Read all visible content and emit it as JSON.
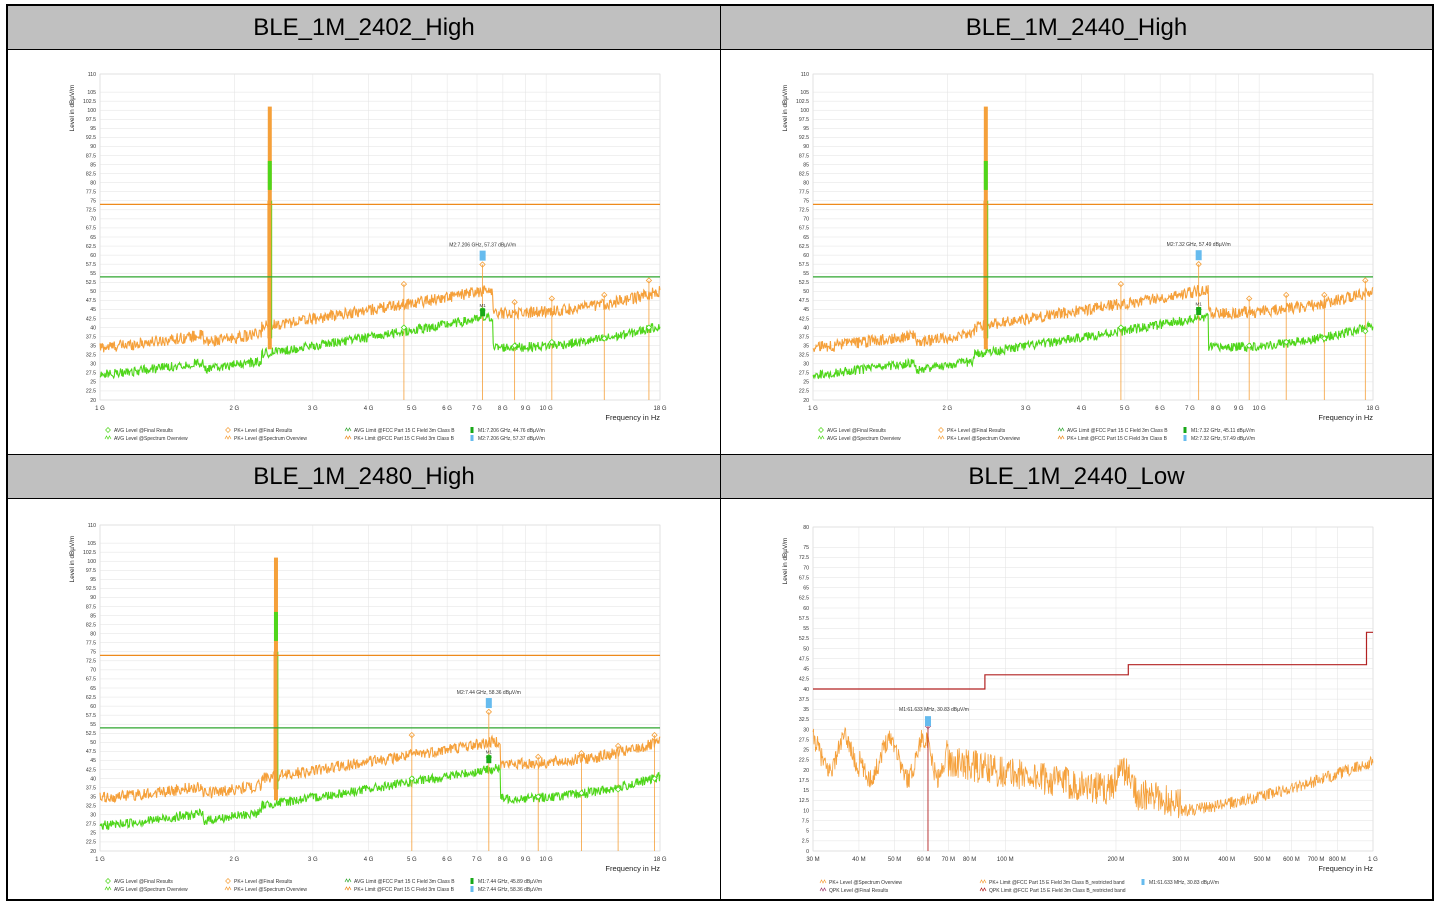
{
  "colors": {
    "avg": "#4fd61a",
    "pk": "#f5a03a",
    "avg_limit": "#2fa52f",
    "pk_limit": "#ee8a1c",
    "red_limit": "#b22222",
    "marker": "#66bbee",
    "grid": "#e2e2e2"
  },
  "chart_data": [
    {
      "type": "line",
      "title": "BLE_1M_2402_High",
      "ylabel": "Level in dBµV/m",
      "xlabel": "Frequency in Hz",
      "ylim": [
        20,
        110
      ],
      "xscale": "log",
      "xlim_hz": [
        1000000000,
        18000000000
      ],
      "y_ticks": [
        "110",
        "105",
        "102.5",
        "100",
        "97.5",
        "95",
        "92.5",
        "90",
        "87.5",
        "85",
        "82.5",
        "80",
        "77.5",
        "75",
        "72.5",
        "70",
        "67.5",
        "65",
        "62.5",
        "60",
        "57.5",
        "55",
        "52.5",
        "50",
        "47.5",
        "45",
        "42.5",
        "40",
        "37.5",
        "35",
        "32.5",
        "30",
        "27.5",
        "25",
        "22.5",
        "20"
      ],
      "x_ticks": [
        {
          "v": 1,
          "l": "1 G"
        },
        {
          "v": 2,
          "l": "2 G"
        },
        {
          "v": 3,
          "l": "3 G"
        },
        {
          "v": 4,
          "l": "4 G"
        },
        {
          "v": 5,
          "l": "5 G"
        },
        {
          "v": 6,
          "l": "6 G"
        },
        {
          "v": 7,
          "l": "7 G"
        },
        {
          "v": 8,
          "l": "8 G"
        },
        {
          "v": 9,
          "l": "9 G"
        },
        {
          "v": 10,
          "l": "10 G"
        },
        {
          "v": 18,
          "l": "18 G"
        }
      ],
      "limits": [
        {
          "name": "PK+ Limit @FCC Part 15 C Field 3m Class B",
          "value": 74,
          "color": "pk_limit"
        },
        {
          "name": "AVG Limit @FCC Part 15 C Field 3m Class B",
          "value": 54,
          "color": "avg_limit"
        }
      ],
      "carrier_ghz": 2.402,
      "band_ghz": 7.6,
      "pk_lo": 52,
      "avg_lo": 37,
      "pk_final": [
        {
          "x": 4.8,
          "y": 52
        },
        {
          "x": 7.2,
          "y": 57.4
        },
        {
          "x": 8.5,
          "y": 47
        },
        {
          "x": 10.3,
          "y": 48
        },
        {
          "x": 13.5,
          "y": 49
        },
        {
          "x": 17.0,
          "y": 53
        }
      ],
      "avg_final": [
        {
          "x": 4.8,
          "y": 40
        },
        {
          "x": 7.2,
          "y": 44.8
        },
        {
          "x": 8.5,
          "y": 35
        },
        {
          "x": 10.3,
          "y": 36
        },
        {
          "x": 13.5,
          "y": 37
        },
        {
          "x": 17.0,
          "y": 40
        }
      ],
      "marker": {
        "x": 7.206,
        "y": 57.37,
        "label": "M2:7.206 GHz, 57.37 dBµV/m",
        "m1": 44.76,
        "m1_label": "M1"
      },
      "legend": {
        "col1": [
          "AVG Level @Final Results",
          "AVG Level @Spectrum Overview"
        ],
        "col2": [
          "PK+ Level @Final Results",
          "PK+ Level @Spectrum Overview"
        ],
        "col3": [
          "AVG Limit @FCC Part 15 C Field 3m Class B",
          "PK+ Limit @FCC Part 15 C Field 3m Class B"
        ],
        "col4": [
          "M1:7.206 GHz, 44.76 dBµV/m",
          "M2:7.206 GHz, 57.37 dBµV/m"
        ]
      }
    },
    {
      "type": "line",
      "title": "BLE_1M_2440_High",
      "ylabel": "Level in dBµV/m",
      "xlabel": "Frequency in Hz",
      "ylim": [
        20,
        110
      ],
      "xscale": "log",
      "xlim_hz": [
        1000000000,
        18000000000
      ],
      "y_ticks": [
        "110",
        "105",
        "102.5",
        "100",
        "97.5",
        "95",
        "92.5",
        "90",
        "87.5",
        "85",
        "82.5",
        "80",
        "77.5",
        "75",
        "72.5",
        "70",
        "67.5",
        "65",
        "62.5",
        "60",
        "57.5",
        "55",
        "52.5",
        "50",
        "47.5",
        "45",
        "42.5",
        "40",
        "37.5",
        "35",
        "32.5",
        "30",
        "27.5",
        "25",
        "22.5",
        "20"
      ],
      "x_ticks": [
        {
          "v": 1,
          "l": "1 G"
        },
        {
          "v": 2,
          "l": "2 G"
        },
        {
          "v": 3,
          "l": "3 G"
        },
        {
          "v": 4,
          "l": "4 G"
        },
        {
          "v": 5,
          "l": "5 G"
        },
        {
          "v": 6,
          "l": "6 G"
        },
        {
          "v": 7,
          "l": "7 G"
        },
        {
          "v": 8,
          "l": "8 G"
        },
        {
          "v": 9,
          "l": "9 G"
        },
        {
          "v": 10,
          "l": "10 G"
        },
        {
          "v": 18,
          "l": "18 G"
        }
      ],
      "limits": [
        {
          "name": "PK+ Limit @FCC Part 15 C Field 3m Class B",
          "value": 74,
          "color": "pk_limit"
        },
        {
          "name": "AVG Limit @FCC Part 15 C Field 3m Class B",
          "value": 54,
          "color": "avg_limit"
        }
      ],
      "carrier_ghz": 2.44,
      "band_ghz": 7.7,
      "pk_lo": 52,
      "avg_lo": 37,
      "pk_final": [
        {
          "x": 4.9,
          "y": 52
        },
        {
          "x": 7.32,
          "y": 57.5
        },
        {
          "x": 9.5,
          "y": 48
        },
        {
          "x": 11.5,
          "y": 49
        },
        {
          "x": 14.0,
          "y": 49
        },
        {
          "x": 17.3,
          "y": 53
        }
      ],
      "avg_final": [
        {
          "x": 4.9,
          "y": 40
        },
        {
          "x": 7.32,
          "y": 45
        },
        {
          "x": 9.5,
          "y": 35
        },
        {
          "x": 11.5,
          "y": 36
        },
        {
          "x": 14.0,
          "y": 37
        },
        {
          "x": 17.3,
          "y": 39
        }
      ],
      "marker": {
        "x": 7.32,
        "y": 57.49,
        "label": "M2:7.32 GHz, 57.49 dBµV/m",
        "m1": 45.11,
        "m1_label": "M1"
      },
      "legend": {
        "col1": [
          "AVG Level @Final Results",
          "AVG Level @Spectrum Overview"
        ],
        "col2": [
          "PK+ Level @Final Results",
          "PK+ Level @Spectrum Overview"
        ],
        "col3": [
          "AVG Limit @FCC Part 15 C Field 3m Class B",
          "PK+ Limit @FCC Part 15 C Field 3m Class B"
        ],
        "col4": [
          "M1:7.32 GHz, 45.11 dBµV/m",
          "M2:7.32 GHz, 57.49 dBµV/m"
        ]
      }
    },
    {
      "type": "line",
      "title": "BLE_1M_2480_High",
      "ylabel": "Level in dBµV/m",
      "xlabel": "Frequency in Hz",
      "ylim": [
        20,
        110
      ],
      "xscale": "log",
      "xlim_hz": [
        1000000000,
        18000000000
      ],
      "y_ticks": [
        "110",
        "105",
        "102.5",
        "100",
        "97.5",
        "95",
        "92.5",
        "90",
        "87.5",
        "85",
        "82.5",
        "80",
        "77.5",
        "75",
        "72.5",
        "70",
        "67.5",
        "65",
        "62.5",
        "60",
        "57.5",
        "55",
        "52.5",
        "50",
        "47.5",
        "45",
        "42.5",
        "40",
        "37.5",
        "35",
        "32.5",
        "30",
        "27.5",
        "25",
        "22.5",
        "20"
      ],
      "x_ticks": [
        {
          "v": 1,
          "l": "1 G"
        },
        {
          "v": 2,
          "l": "2 G"
        },
        {
          "v": 3,
          "l": "3 G"
        },
        {
          "v": 4,
          "l": "4 G"
        },
        {
          "v": 5,
          "l": "5 G"
        },
        {
          "v": 6,
          "l": "6 G"
        },
        {
          "v": 7,
          "l": "7 G"
        },
        {
          "v": 8,
          "l": "8 G"
        },
        {
          "v": 9,
          "l": "9 G"
        },
        {
          "v": 10,
          "l": "10 G"
        },
        {
          "v": 18,
          "l": "18 G"
        }
      ],
      "limits": [
        {
          "name": "PK+ Limit @FCC Part 15 C Field 3m Class B",
          "value": 74,
          "color": "pk_limit"
        },
        {
          "name": "AVG Limit @FCC Part 15 C Field 3m Class B",
          "value": 54,
          "color": "avg_limit"
        }
      ],
      "carrier_ghz": 2.48,
      "band_ghz": 7.9,
      "pk_lo": 52,
      "avg_lo": 37,
      "pk_final": [
        {
          "x": 5.0,
          "y": 52
        },
        {
          "x": 7.44,
          "y": 58.4
        },
        {
          "x": 9.6,
          "y": 46
        },
        {
          "x": 12.0,
          "y": 47
        },
        {
          "x": 14.5,
          "y": 49
        },
        {
          "x": 17.5,
          "y": 52
        }
      ],
      "avg_final": [
        {
          "x": 5.0,
          "y": 40
        },
        {
          "x": 7.44,
          "y": 45.9
        },
        {
          "x": 9.6,
          "y": 35
        },
        {
          "x": 12.0,
          "y": 36
        },
        {
          "x": 14.5,
          "y": 37
        },
        {
          "x": 17.5,
          "y": 40
        }
      ],
      "marker": {
        "x": 7.44,
        "y": 58.36,
        "label": "M2:7.44 GHz, 58.36 dBµV/m",
        "m1": 45.89,
        "m1_label": "M1"
      },
      "legend": {
        "col1": [
          "AVG Level @Final Results",
          "AVG Level @Spectrum Overview"
        ],
        "col2": [
          "PK+ Level @Final Results",
          "PK+ Level @Spectrum Overview"
        ],
        "col3": [
          "AVG Limit @FCC Part 15 C Field 3m Class B",
          "PK+ Limit @FCC Part 15 C Field 3m Class B"
        ],
        "col4": [
          "M1:7.44 GHz, 45.89 dBµV/m",
          "M2:7.44 GHz, 58.36 dBµV/m"
        ]
      }
    },
    {
      "type": "line",
      "title": "BLE_1M_2440_Low",
      "ylabel": "Level in dBµV/m",
      "xlabel": "Frequency in Hz",
      "ylim": [
        0,
        80
      ],
      "xscale": "log",
      "xlim_hz": [
        30000000,
        1000000000
      ],
      "y_ticks": [
        "80",
        "75",
        "72.5",
        "70",
        "67.5",
        "65",
        "62.5",
        "60",
        "57.5",
        "55",
        "52.5",
        "50",
        "47.5",
        "45",
        "42.5",
        "40",
        "37.5",
        "35",
        "32.5",
        "30",
        "27.5",
        "25",
        "22.5",
        "20",
        "17.5",
        "15",
        "12.5",
        "10",
        "7.5",
        "5",
        "2.5",
        "0"
      ],
      "x_ticks": [
        {
          "v": 30,
          "l": "30 M"
        },
        {
          "v": 40,
          "l": "40 M"
        },
        {
          "v": 50,
          "l": "50 M"
        },
        {
          "v": 60,
          "l": "60 M"
        },
        {
          "v": 70,
          "l": "70 M"
        },
        {
          "v": 80,
          "l": "80 M"
        },
        {
          "v": 100,
          "l": "100 M"
        },
        {
          "v": 200,
          "l": "200 M"
        },
        {
          "v": 300,
          "l": "300 M"
        },
        {
          "v": 400,
          "l": "400 M"
        },
        {
          "v": 500,
          "l": "500 M"
        },
        {
          "v": 600,
          "l": "600 M"
        },
        {
          "v": 700,
          "l": "700 M"
        },
        {
          "v": 800,
          "l": "800 M"
        },
        {
          "v": 1000,
          "l": "1 G"
        }
      ],
      "limit_steps": [
        {
          "x0": 30,
          "x1": 88,
          "y": 40
        },
        {
          "x0": 88,
          "x1": 216,
          "y": 43.5
        },
        {
          "x0": 216,
          "x1": 960,
          "y": 46
        },
        {
          "x0": 960,
          "x1": 1000,
          "y": 54
        }
      ],
      "marker": {
        "x": 61.633,
        "y": 30.83,
        "label": "M1:61.633 MHz, 30.83 dBµV/m"
      },
      "legend": {
        "col1": [
          "PK+ Level @Spectrum Overview",
          "QPK Level @Final Results"
        ],
        "col2": [
          "PK+ Limit @FCC Part 15 E Field 3m Class B_restricted band",
          "QPK Limit @FCC Part 15 E Field 3m Class B_restricted band"
        ],
        "col3": [
          "M1:61.633 MHz, 30.83 dBµV/m"
        ]
      }
    }
  ]
}
